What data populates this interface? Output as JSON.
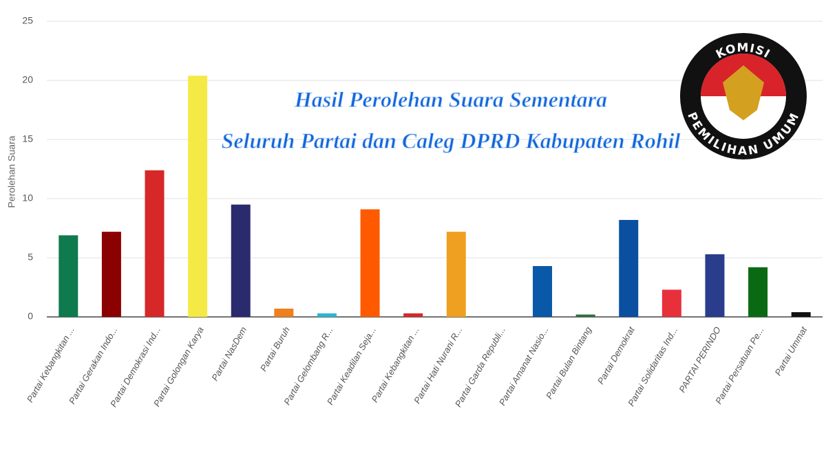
{
  "chart_data": {
    "type": "bar",
    "title": "Hasil Perolehan Suara Sementara",
    "subtitle": "Seluruh Partai dan Caleg DPRD Kabupaten Rohil",
    "y_label": "Perolehan Suara",
    "logo_text": [
      "KOMISI",
      "PEMILIHAN UMUM"
    ],
    "categories": [
      "Partai Kebangkitan ...",
      "Partai Gerakan Indo...",
      "Partai Demokrasi Ind...",
      "Partai Golongan Karya",
      "Partai NasDem",
      "Partai Buruh",
      "Partai Gelombang R...",
      "Partai Keadilan Seja...",
      "Partai Kebangkitan ...",
      "Partai Hati Nurani R...",
      "Partai Garda Republi...",
      "Partai Amanat Nasio...",
      "Partai Bulan Bintang",
      "Partai Demokrat",
      "Partai Solidaritas Ind...",
      "PARTAI PERINDO",
      "Partai Persatuan Pe...",
      "Partai Ummat"
    ],
    "values": [
      6.9,
      7.2,
      12.4,
      20.4,
      9.5,
      0.7,
      0.3,
      9.1,
      0.3,
      7.2,
      0,
      4.3,
      0.2,
      8.2,
      2.3,
      5.3,
      4.2,
      0.4
    ],
    "colors": [
      "#0e7a4e",
      "#8b0000",
      "#d62828",
      "#f5ea45",
      "#2a2a6e",
      "#f07f1e",
      "#29b6d6",
      "#ff5a00",
      "#d62828",
      "#f0a020",
      "#888888",
      "#0a58a8",
      "#2e6e3e",
      "#0a4fa0",
      "#e8303c",
      "#2a3c8c",
      "#0a6a14",
      "#111111"
    ],
    "ylim": [
      0,
      25
    ],
    "yticks": [
      0,
      5,
      10,
      15,
      20,
      25
    ],
    "grid": true
  }
}
